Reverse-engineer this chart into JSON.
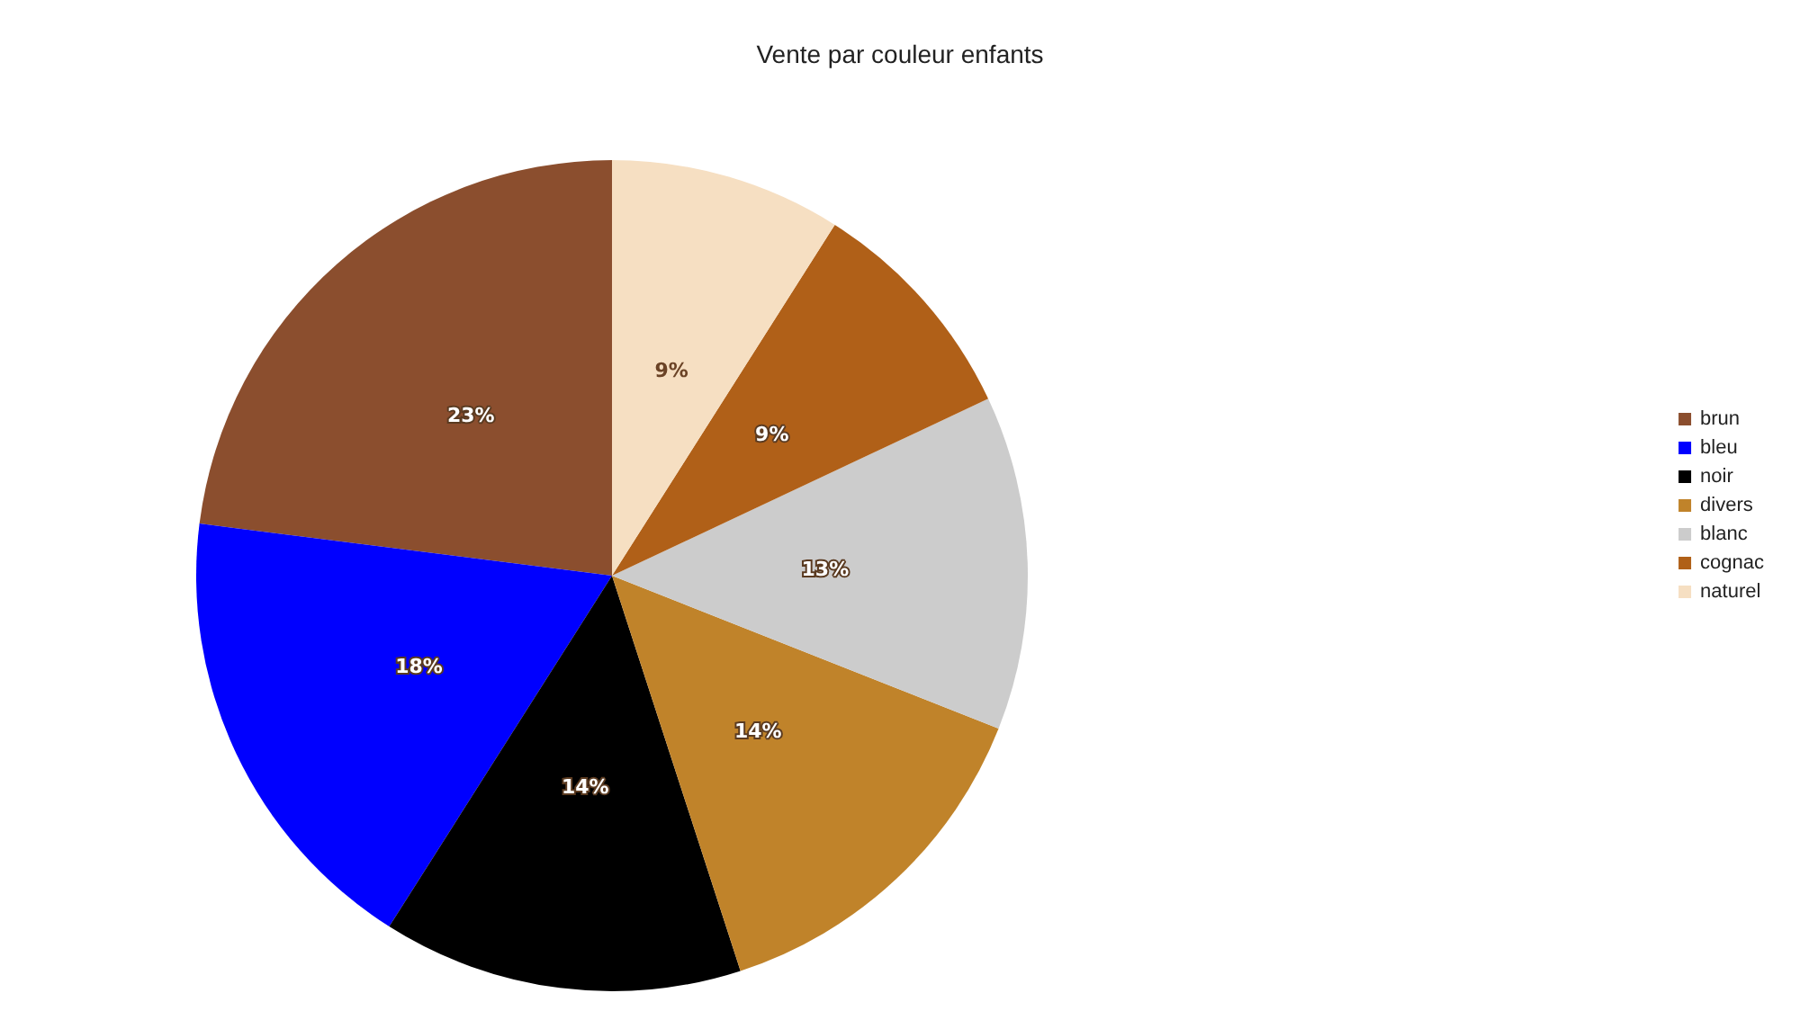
{
  "chart_data": {
    "type": "pie",
    "title": "Vente par couleur enfants",
    "categories": [
      "brun",
      "bleu",
      "noir",
      "divers",
      "blanc",
      "cognac",
      "naturel"
    ],
    "values": [
      23,
      18,
      14,
      14,
      13,
      9,
      9
    ],
    "colors": [
      "#8b4e2e",
      "#0000ff",
      "#000000",
      "#c0832a",
      "#cccccc",
      "#b06018",
      "#f6dfc2"
    ],
    "value_labels": [
      "23%",
      "18%",
      "14%",
      "14%",
      "13%",
      "9%",
      "9%"
    ],
    "legend": "right"
  }
}
